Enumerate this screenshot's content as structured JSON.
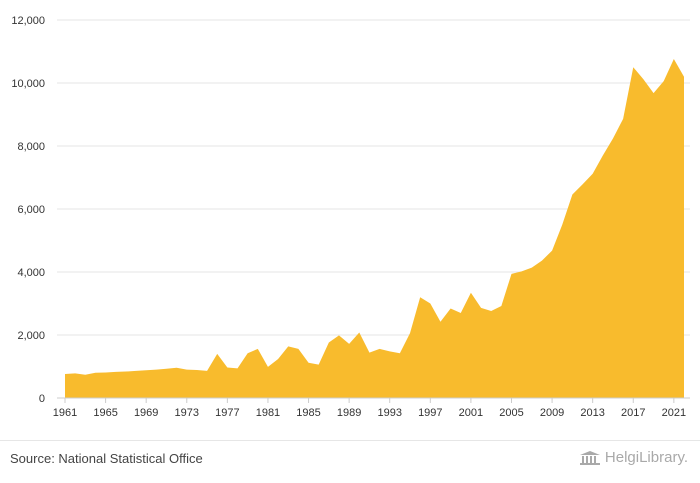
{
  "chart_data": {
    "type": "area",
    "title": "",
    "xlabel": "",
    "ylabel": "",
    "x": [
      1961,
      1962,
      1963,
      1964,
      1965,
      1966,
      1967,
      1968,
      1969,
      1970,
      1971,
      1972,
      1973,
      1974,
      1975,
      1976,
      1977,
      1978,
      1979,
      1980,
      1981,
      1982,
      1983,
      1984,
      1985,
      1986,
      1987,
      1988,
      1989,
      1990,
      1991,
      1992,
      1993,
      1994,
      1995,
      1996,
      1997,
      1998,
      1999,
      2000,
      2001,
      2002,
      2003,
      2004,
      2005,
      2006,
      2007,
      2008,
      2009,
      2010,
      2011,
      2012,
      2013,
      2014,
      2015,
      2016,
      2017,
      2018,
      2019,
      2020,
      2021,
      2022
    ],
    "series": [
      {
        "values": [
          760,
          780,
          740,
          800,
          810,
          830,
          840,
          860,
          880,
          900,
          930,
          960,
          900,
          890,
          860,
          1400,
          970,
          940,
          1420,
          1560,
          990,
          1240,
          1640,
          1560,
          1120,
          1060,
          1760,
          1990,
          1720,
          2080,
          1440,
          1560,
          1480,
          1420,
          2060,
          3200,
          3000,
          2420,
          2840,
          2700,
          3340,
          2860,
          2760,
          2920,
          3940,
          4020,
          4140,
          4360,
          4680,
          5500,
          6460,
          6780,
          7120,
          7700,
          8240,
          8860,
          10500,
          10120,
          9680,
          10060,
          10760,
          10200
        ],
        "color": "#f8bb2d"
      }
    ],
    "ylim": [
      0,
      12000
    ],
    "yticks": [
      0,
      2000,
      4000,
      6000,
      8000,
      10000,
      12000
    ],
    "ytick_labels": [
      "0",
      "2,000",
      "4,000",
      "6,000",
      "8,000",
      "10,000",
      "12,000"
    ],
    "xticks": [
      1961,
      1965,
      1969,
      1973,
      1977,
      1981,
      1985,
      1989,
      1993,
      1997,
      2001,
      2005,
      2009,
      2013,
      2017,
      2021
    ],
    "grid": true,
    "legend": "none"
  },
  "footer": {
    "source": "Source: National Statistical Office",
    "brand": "HelgiLibrary."
  },
  "colors": {
    "area": "#f8bb2d",
    "grid": "#e6e6e6",
    "axis": "#cccccc",
    "text": "#333333"
  }
}
